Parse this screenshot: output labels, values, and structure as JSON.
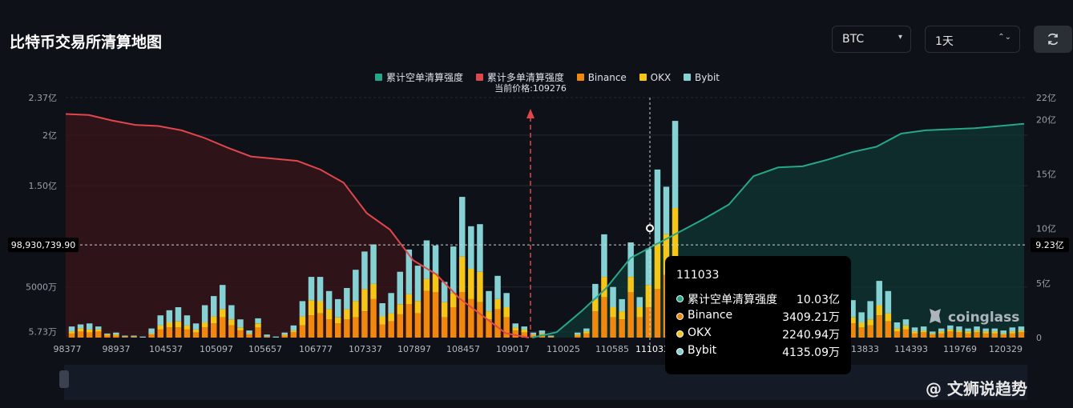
{
  "page": {
    "title": "比特币交易所清算地图"
  },
  "controls": {
    "symbol": "BTC",
    "interval": "1天",
    "symbol_caret": "▾",
    "interval_caret": "⌃⌄",
    "refresh_icon": "refresh-icon"
  },
  "legend": {
    "items": [
      {
        "label": "累计空单清算强度",
        "color": "#26a78a"
      },
      {
        "label": "累计多单清算强度",
        "color": "#e0474c"
      },
      {
        "label": "Binance",
        "color": "#f0870f"
      },
      {
        "label": "OKX",
        "color": "#f5c518"
      },
      {
        "label": "Bybit",
        "color": "#86d1d4"
      }
    ]
  },
  "current_price_label": "当前价格:109276",
  "tooltip": {
    "title": "111033",
    "rows": [
      {
        "label": "累计空单清算强度",
        "value": "10.03亿",
        "color": "#26a78a"
      },
      {
        "label": "Binance",
        "value": "3409.21万",
        "color": "#f0870f"
      },
      {
        "label": "OKX",
        "value": "2240.94万",
        "color": "#f5c518"
      },
      {
        "label": "Bybit",
        "value": "4135.09万",
        "color": "#86d1d4"
      }
    ]
  },
  "watermarks": {
    "coinglass": "coinglass",
    "author": "@ 文狮说趋势"
  },
  "chart_data": {
    "type": "bar",
    "left_axis": {
      "ticks": [
        "5.73万",
        "5000万",
        "1.50亿",
        "2亿",
        "2.37亿"
      ],
      "values": [
        0.0573,
        0.5,
        1.5,
        2.0,
        2.37
      ],
      "unit": "亿"
    },
    "right_axis": {
      "ticks": [
        "0",
        "5亿",
        "10亿",
        "15亿",
        "20亿",
        "22亿"
      ],
      "values": [
        0,
        5,
        10,
        15,
        20,
        22
      ],
      "unit": "亿"
    },
    "crosshair": {
      "left_value_label": "98,930,739.90",
      "right_value_label": "9.23亿"
    },
    "x_tick_labels": [
      "98377",
      "98937",
      "104537",
      "105097",
      "105657",
      "106777",
      "107337",
      "107897",
      "108457",
      "109017",
      "110025",
      "110585",
      "111033",
      "113833",
      "114393",
      "119769",
      "120329"
    ],
    "current_price": 109276,
    "hovered_price": 111033,
    "bars_stacked_yi": [
      [
        0.04,
        0.02,
        0.05
      ],
      [
        0.06,
        0.03,
        0.04
      ],
      [
        0.05,
        0.03,
        0.06
      ],
      [
        0.06,
        0.02,
        0.03
      ],
      [
        0.02,
        0.01,
        0.01
      ],
      [
        0.02,
        0.01,
        0.02
      ],
      [
        0.01,
        0.0,
        0.01
      ],
      [
        0.01,
        0.0,
        0.01
      ],
      [
        0.0,
        0.0,
        0.01
      ],
      [
        0.03,
        0.01,
        0.05
      ],
      [
        0.08,
        0.04,
        0.1
      ],
      [
        0.1,
        0.05,
        0.12
      ],
      [
        0.1,
        0.06,
        0.14
      ],
      [
        0.08,
        0.04,
        0.1
      ],
      [
        0.05,
        0.03,
        0.06
      ],
      [
        0.1,
        0.05,
        0.17
      ],
      [
        0.14,
        0.07,
        0.2
      ],
      [
        0.2,
        0.08,
        0.24
      ],
      [
        0.12,
        0.06,
        0.14
      ],
      [
        0.07,
        0.03,
        0.08
      ],
      [
        0.03,
        0.01,
        0.03
      ],
      [
        0.1,
        0.04,
        0.05
      ],
      [
        0.01,
        0.0,
        0.02
      ],
      [
        0.0,
        0.0,
        0.01
      ],
      [
        0.02,
        0.01,
        0.02
      ],
      [
        0.05,
        0.02,
        0.05
      ],
      [
        0.12,
        0.09,
        0.15
      ],
      [
        0.22,
        0.15,
        0.23
      ],
      [
        0.24,
        0.12,
        0.24
      ],
      [
        0.18,
        0.1,
        0.18
      ],
      [
        0.14,
        0.06,
        0.18
      ],
      [
        0.18,
        0.1,
        0.21
      ],
      [
        0.2,
        0.16,
        0.31
      ],
      [
        0.26,
        0.22,
        0.37
      ],
      [
        0.38,
        0.15,
        0.39
      ],
      [
        0.13,
        0.08,
        0.13
      ],
      [
        0.16,
        0.08,
        0.2
      ],
      [
        0.23,
        0.1,
        0.32
      ],
      [
        0.33,
        0.1,
        0.44
      ],
      [
        0.24,
        0.12,
        0.35
      ],
      [
        0.46,
        0.12,
        0.38
      ],
      [
        0.45,
        0.18,
        0.28
      ],
      [
        0.2,
        0.15,
        0.2
      ],
      [
        0.3,
        0.14,
        0.46
      ],
      [
        0.45,
        0.35,
        0.59
      ],
      [
        0.38,
        0.3,
        0.42
      ],
      [
        0.35,
        0.3,
        0.47
      ],
      [
        0.18,
        0.08,
        0.2
      ],
      [
        0.28,
        0.1,
        0.23
      ],
      [
        0.2,
        0.1,
        0.14
      ],
      [
        0.07,
        0.03,
        0.04
      ],
      [
        0.05,
        0.03,
        0.03
      ],
      [
        0.02,
        0.01,
        0.02
      ],
      [
        0.03,
        0.01,
        0.03
      ],
      [
        0.01,
        0.0,
        0.01
      ],
      [
        0.0,
        0.0,
        0.0
      ],
      [
        0.0,
        0.0,
        0.0
      ],
      [
        0.02,
        0.01,
        0.02
      ],
      [
        0.04,
        0.02,
        0.03
      ],
      [
        0.26,
        0.12,
        0.15
      ],
      [
        0.4,
        0.2,
        0.42
      ],
      [
        0.2,
        0.1,
        0.2
      ],
      [
        0.18,
        0.08,
        0.12
      ],
      [
        0.45,
        0.15,
        0.34
      ],
      [
        0.2,
        0.1,
        0.1
      ],
      [
        0.3,
        0.22,
        0.36
      ],
      [
        0.48,
        0.45,
        0.73
      ],
      [
        0.62,
        0.4,
        0.47
      ],
      [
        0.78,
        0.5,
        0.86
      ],
      [
        0.28,
        0.12,
        0.23
      ],
      [
        0.15,
        0.06,
        0.12
      ],
      [
        0.22,
        0.08,
        0.15
      ],
      [
        0.14,
        0.05,
        0.12
      ],
      [
        0.22,
        0.1,
        0.34
      ],
      [
        0.2,
        0.1,
        0.2
      ],
      [
        0.24,
        0.1,
        0.2
      ],
      [
        0.18,
        0.06,
        0.2
      ],
      [
        0.3,
        0.1,
        0.32
      ],
      [
        0.18,
        0.08,
        0.16
      ],
      [
        0.1,
        0.05,
        0.12
      ],
      [
        0.2,
        0.08,
        0.22
      ],
      [
        0.12,
        0.06,
        0.14
      ],
      [
        0.1,
        0.04,
        0.12
      ],
      [
        0.15,
        0.07,
        0.18
      ],
      [
        0.1,
        0.05,
        0.12
      ],
      [
        0.08,
        0.04,
        0.09
      ],
      [
        0.12,
        0.05,
        0.14
      ],
      [
        0.08,
        0.04,
        0.1
      ],
      [
        0.14,
        0.06,
        0.17
      ],
      [
        0.1,
        0.05,
        0.1
      ],
      [
        0.12,
        0.06,
        0.18
      ],
      [
        0.22,
        0.1,
        0.24
      ],
      [
        0.16,
        0.08,
        0.22
      ],
      [
        0.06,
        0.03,
        0.06
      ],
      [
        0.08,
        0.04,
        0.06
      ],
      [
        0.04,
        0.02,
        0.04
      ],
      [
        0.05,
        0.02,
        0.04
      ],
      [
        0.03,
        0.01,
        0.02
      ],
      [
        0.04,
        0.02,
        0.03
      ],
      [
        0.06,
        0.02,
        0.04
      ],
      [
        0.05,
        0.02,
        0.04
      ],
      [
        0.04,
        0.02,
        0.03
      ],
      [
        0.05,
        0.02,
        0.04
      ],
      [
        0.04,
        0.02,
        0.03
      ],
      [
        0.04,
        0.02,
        0.03
      ],
      [
        0.03,
        0.01,
        0.03
      ],
      [
        0.04,
        0.02,
        0.04
      ],
      [
        0.05,
        0.02,
        0.04
      ]
    ],
    "long_curve_yi": [
      20.5,
      20.4,
      19.9,
      19.5,
      19.4,
      19.0,
      18.3,
      17.4,
      16.6,
      16.4,
      16.2,
      15.4,
      14.2,
      11.4,
      9.9,
      7.1,
      5.8,
      3.6,
      2.0,
      0.4,
      0.0
    ],
    "short_curve_yi": [
      0.0,
      0.5,
      2.4,
      4.5,
      7.3,
      8.5,
      9.7,
      10.9,
      12.2,
      14.8,
      15.6,
      15.7,
      16.3,
      17.0,
      17.5,
      18.7,
      19.0,
      19.1,
      19.2,
      19.4,
      19.6
    ]
  }
}
